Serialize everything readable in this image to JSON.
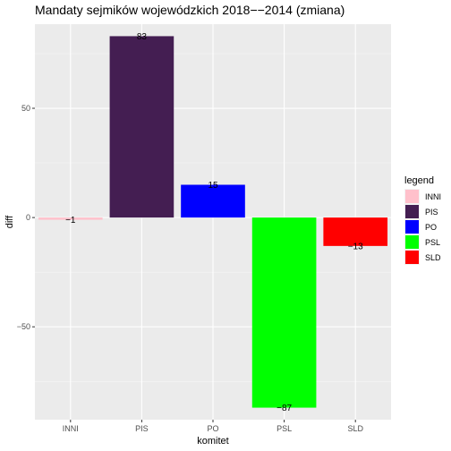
{
  "chart_data": {
    "type": "bar",
    "title": "Mandaty sejmików wojewódzkich 2018−−2014 (zmiana)",
    "xlabel": "komitet",
    "ylabel": "diff",
    "categories": [
      "INNI",
      "PIS",
      "PO",
      "PSL",
      "SLD"
    ],
    "values": [
      -1,
      83,
      15,
      -87,
      -13
    ],
    "data_labels": [
      "−1",
      "83",
      "15",
      "−87",
      "−13"
    ],
    "colors": [
      "#ffc0cb",
      "#441e52",
      "#0000ff",
      "#00ff00",
      "#ff0000"
    ],
    "ylim": [
      -92.5,
      88.5
    ],
    "yticks": [
      -50,
      0,
      50
    ],
    "ytick_labels": [
      "−50",
      "0",
      "50"
    ],
    "grid": true,
    "legend": {
      "title": "legend",
      "position": "right",
      "entries": [
        "INNI",
        "PIS",
        "PO",
        "PSL",
        "SLD"
      ]
    }
  }
}
